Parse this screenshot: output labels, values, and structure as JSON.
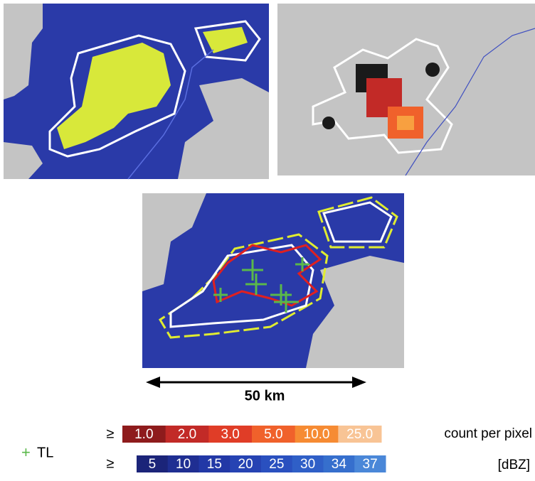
{
  "scale_bar": {
    "label": "50 km"
  },
  "marker_legend": {
    "symbol": "+",
    "label": "TL"
  },
  "count_legend": {
    "prefix": "≥",
    "unit": "count per pixel",
    "cells": [
      {
        "label": "1.0",
        "color": "#8e1b1c"
      },
      {
        "label": "2.0",
        "color": "#c22a27"
      },
      {
        "label": "3.0",
        "color": "#e03d27"
      },
      {
        "label": "5.0",
        "color": "#f0612b"
      },
      {
        "label": "10.0",
        "color": "#f68b33"
      },
      {
        "label": "25.0",
        "color": "#f8c495"
      }
    ]
  },
  "dbz_legend": {
    "prefix": "≥",
    "unit": "[dBZ]",
    "cells": [
      {
        "label": "5",
        "color": "#1b2479"
      },
      {
        "label": "10",
        "color": "#1f2e92"
      },
      {
        "label": "15",
        "color": "#2238a6"
      },
      {
        "label": "20",
        "color": "#2643b3"
      },
      {
        "label": "25",
        "color": "#2a50bf"
      },
      {
        "label": "30",
        "color": "#2f5fc7"
      },
      {
        "label": "34",
        "color": "#366fcd"
      },
      {
        "label": "37",
        "color": "#4a87d8"
      }
    ]
  }
}
